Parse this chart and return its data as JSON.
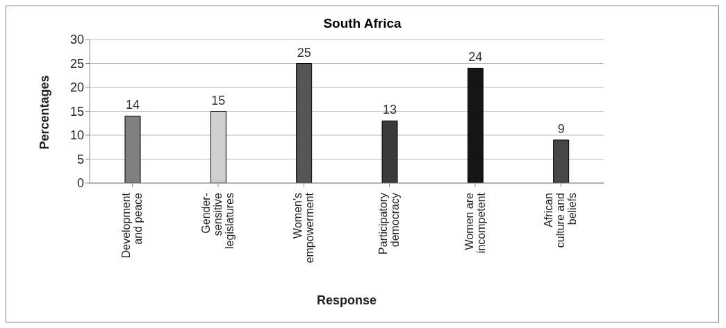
{
  "chart_data": {
    "type": "bar",
    "title": "South Africa",
    "xlabel": "Response",
    "ylabel": "Percentages",
    "categories": [
      "Development and peace",
      "Gender-sensitive legislatures",
      "Women's empowerment",
      "Participatory democracy",
      "Women are incompetent",
      "African culture and beliefs"
    ],
    "values": [
      14,
      15,
      25,
      13,
      24,
      9
    ],
    "colors": [
      "#808080",
      "#d0d0d0",
      "#555555",
      "#3a3a3a",
      "#151515",
      "#474747"
    ],
    "ylim": [
      0,
      30
    ],
    "yticks": [
      0,
      5,
      10,
      15,
      20,
      25,
      30
    ],
    "grid": "y",
    "data_labels": true
  }
}
